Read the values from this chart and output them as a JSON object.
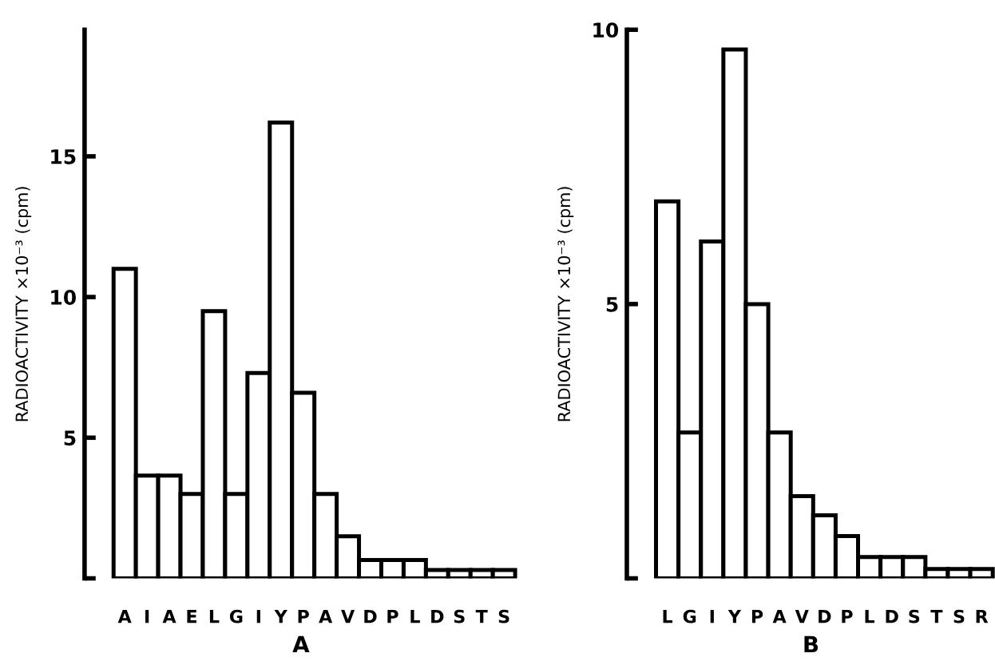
{
  "chart_data": [
    {
      "type": "bar",
      "xlabel": "A",
      "ylabel": "RADIOACTIVITY ×10⁻³ (cpm)",
      "categories": [
        "A",
        "I",
        "A",
        "E",
        "L",
        "G",
        "I",
        "Y",
        "P",
        "A",
        "V",
        "D",
        "P",
        "L",
        "D",
        "S",
        "T",
        "S"
      ],
      "values": [
        11.0,
        3.65,
        3.65,
        3.0,
        9.5,
        3.0,
        7.3,
        16.2,
        6.6,
        3.0,
        1.5,
        0.65,
        0.65,
        0.65,
        0.3,
        0.3,
        0.3,
        0.3
      ],
      "color": "#ffffff",
      "ylim": [
        0,
        19.5
      ],
      "yticks": [
        {
          "value": 0,
          "label": null
        },
        5,
        10,
        15
      ],
      "grid": false
    },
    {
      "type": "bar",
      "xlabel": "B",
      "ylabel": "RADIOACTIVITY ×10⁻³ (cpm)",
      "categories": [
        "L",
        "G",
        "I",
        "Y",
        "P",
        "A",
        "V",
        "D",
        "P",
        "L",
        "D",
        "S",
        "T",
        "S",
        "R"
      ],
      "values": [
        6.87,
        2.66,
        6.14,
        9.64,
        5.0,
        2.66,
        1.5,
        1.15,
        0.77,
        0.39,
        0.39,
        0.39,
        0.17,
        0.17,
        0.17
      ],
      "color": "#ffffff",
      "ylim": [
        0,
        10
      ],
      "yticks": [
        {
          "value": 0,
          "label": null
        },
        5,
        10
      ],
      "grid": false
    }
  ]
}
